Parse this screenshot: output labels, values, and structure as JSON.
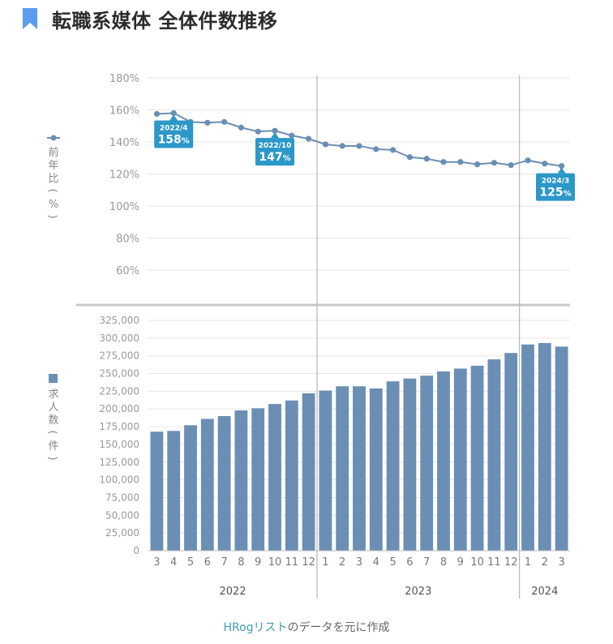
{
  "header": {
    "title": "転職系媒体 全体件数推移",
    "icon": "bookmark-icon",
    "icon_color": "#5b9cf0"
  },
  "source": {
    "link_text": "HRogリスト",
    "rest_text": "のデータを元に作成",
    "link_color": "#3e9db4"
  },
  "chart_data": [
    {
      "type": "line",
      "ylabel": "前年比(%)",
      "ylim": [
        60,
        180
      ],
      "yticks": [
        "60%",
        "80%",
        "100%",
        "120%",
        "140%",
        "160%",
        "180%"
      ],
      "ytick_values": [
        60,
        80,
        100,
        120,
        140,
        160,
        180
      ],
      "grid": true,
      "color": "#6b8eb4",
      "categories": [
        "2022/3",
        "2022/4",
        "2022/5",
        "2022/6",
        "2022/7",
        "2022/8",
        "2022/9",
        "2022/10",
        "2022/11",
        "2022/12",
        "2023/1",
        "2023/2",
        "2023/3",
        "2023/4",
        "2023/5",
        "2023/6",
        "2023/7",
        "2023/8",
        "2023/9",
        "2023/10",
        "2023/11",
        "2023/12",
        "2024/1",
        "2024/2",
        "2024/3"
      ],
      "values": [
        157.5,
        158,
        152.5,
        152,
        152.5,
        149,
        146.5,
        147,
        144,
        142,
        138.5,
        137.5,
        137.5,
        135.5,
        135,
        130.5,
        129.5,
        127.5,
        127.5,
        126,
        127,
        125.5,
        128.5,
        126.5,
        125
      ],
      "annotations": [
        {
          "index": 1,
          "date": "2022/4",
          "value": "158",
          "unit": "%"
        },
        {
          "index": 7,
          "date": "2022/10",
          "value": "147",
          "unit": "%"
        },
        {
          "index": 24,
          "date": "2024/3",
          "value": "125",
          "unit": "%"
        }
      ],
      "annotation_color": "#2b98c8"
    },
    {
      "type": "bar",
      "ylabel": "求人数(件)",
      "ylim": [
        0,
        325000
      ],
      "yticks": [
        "0",
        "25,000",
        "50,000",
        "75,000",
        "100,000",
        "125,000",
        "150,000",
        "175,000",
        "200,000",
        "225,000",
        "250,000",
        "275,000",
        "300,000",
        "325,000"
      ],
      "ytick_values": [
        0,
        25000,
        50000,
        75000,
        100000,
        125000,
        150000,
        175000,
        200000,
        225000,
        250000,
        275000,
        300000,
        325000
      ],
      "grid": true,
      "color": "#6b8eb4",
      "values": [
        168000,
        169000,
        177000,
        186000,
        190000,
        198000,
        201000,
        207000,
        212000,
        222000,
        226000,
        232000,
        232000,
        229000,
        239000,
        243000,
        247000,
        253000,
        257000,
        261000,
        270000,
        279000,
        291000,
        293000,
        288000
      ]
    }
  ],
  "x_axis": {
    "month_labels": [
      "3",
      "4",
      "5",
      "6",
      "7",
      "8",
      "9",
      "10",
      "11",
      "12",
      "1",
      "2",
      "3",
      "4",
      "5",
      "6",
      "7",
      "8",
      "9",
      "10",
      "11",
      "12",
      "1",
      "2",
      "3"
    ],
    "years": [
      {
        "label": "2022",
        "from": 0,
        "to": 9
      },
      {
        "label": "2023",
        "from": 10,
        "to": 21
      },
      {
        "label": "2024",
        "from": 22,
        "to": 24
      }
    ],
    "year_dividers_after": [
      9,
      21
    ]
  }
}
